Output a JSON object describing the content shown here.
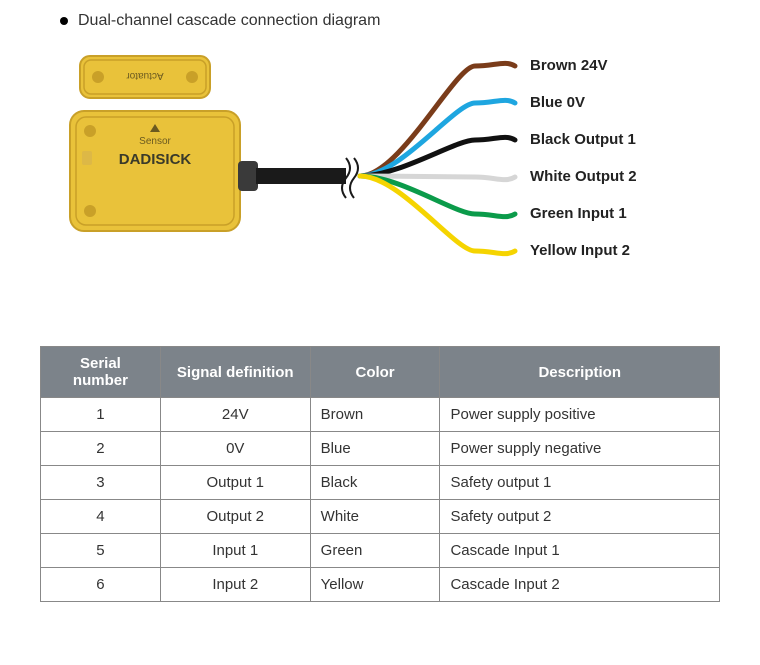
{
  "heading": "Dual-channel cascade connection diagram",
  "sensor": {
    "actuator_label": "Actuator",
    "sensor_label": "Sensor",
    "brand": "DADISICK",
    "body_color": "#e9c23a",
    "body_shadow": "#c9a028",
    "cable_color": "#1a1a1a",
    "cable_sleeve": "#3a3a3a"
  },
  "wires": [
    {
      "label": "Brown 24V",
      "color": "#7a3c1a"
    },
    {
      "label": "Blue 0V",
      "color": "#1ea6e0"
    },
    {
      "label": "Black Output 1",
      "color": "#111111"
    },
    {
      "label": "White Output 2",
      "color": "#d6d6d6"
    },
    {
      "label": "Green Input 1",
      "color": "#0b9b4a"
    },
    {
      "label": "Yellow Input 2",
      "color": "#f5d400"
    }
  ],
  "table": {
    "columns": [
      "Serial number",
      "Signal definition",
      "Color",
      "Description"
    ],
    "rows": [
      [
        "1",
        "24V",
        "Brown",
        "Power supply positive"
      ],
      [
        "2",
        "0V",
        "Blue",
        "Power supply negative"
      ],
      [
        "3",
        "Output 1",
        "Black",
        "Safety output 1"
      ],
      [
        "4",
        "Output 2",
        "White",
        "Safety output 2"
      ],
      [
        "5",
        "Input 1",
        "Green",
        "Cascade Input 1"
      ],
      [
        "6",
        "Input 2",
        "Yellow",
        "Cascade Input 2"
      ]
    ]
  },
  "style": {
    "header_bg": "#7c838a",
    "border_color": "#888888",
    "text_color": "#333333",
    "font_family": "Arial",
    "wire_stroke_width": 5
  }
}
